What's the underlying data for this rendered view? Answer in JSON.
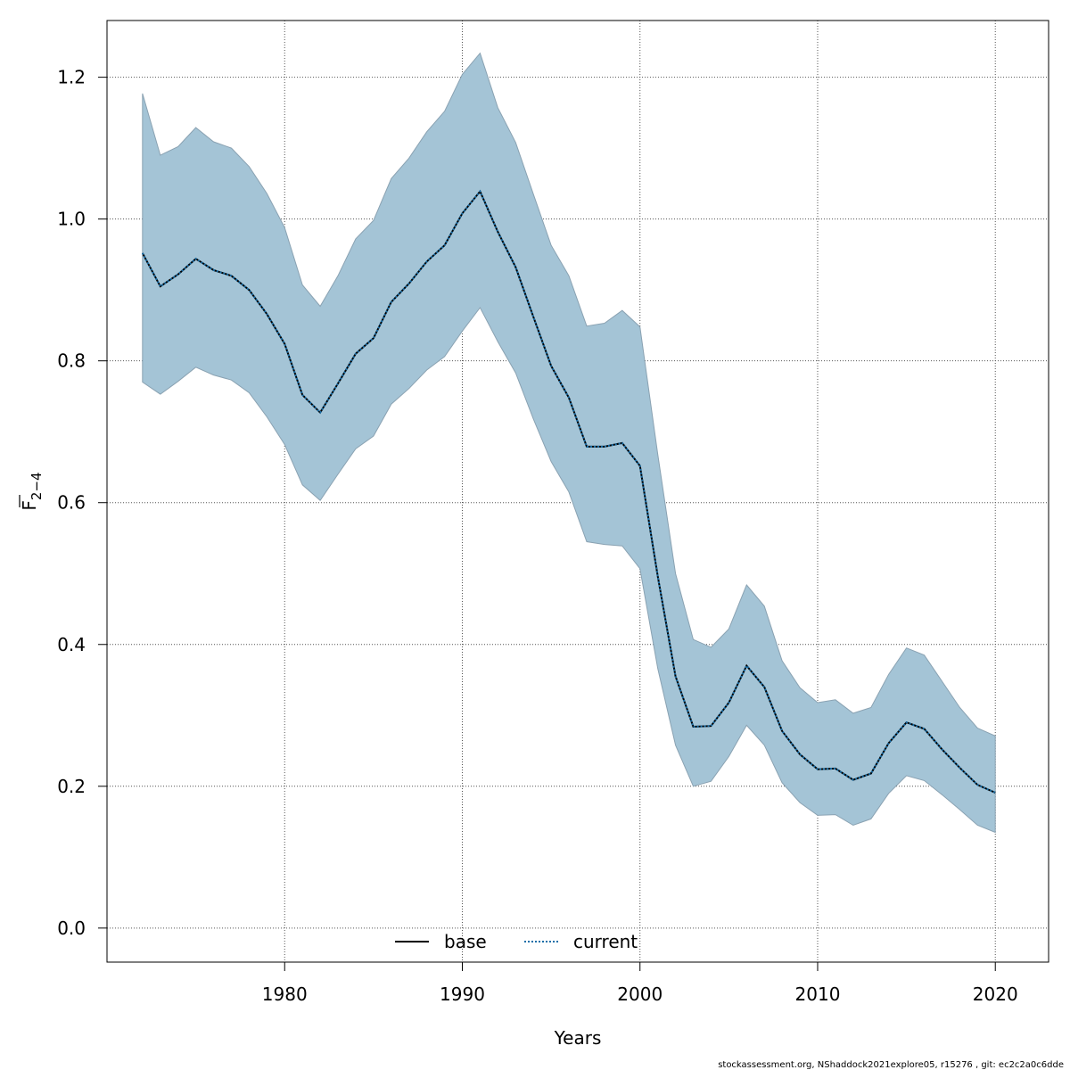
{
  "chart_data": {
    "type": "line",
    "xlabel": "Years",
    "ylabel": "F",
    "ylabel_sub": "2−4",
    "xlim": [
      1970.0,
      2023.0
    ],
    "ylim": [
      -0.048,
      1.28
    ],
    "xticks": [
      1980,
      1990,
      2000,
      2010,
      2020
    ],
    "yticks": [
      0.0,
      0.2,
      0.4,
      0.6,
      0.8,
      1.0,
      1.2
    ],
    "grid": true,
    "legend_position": "bottom-center",
    "x": [
      1972,
      1973,
      1974,
      1975,
      1976,
      1977,
      1978,
      1979,
      1980,
      1981,
      1982,
      1983,
      1984,
      1985,
      1986,
      1987,
      1988,
      1989,
      1990,
      1991,
      1992,
      1993,
      1994,
      1995,
      1996,
      1997,
      1998,
      1999,
      2000,
      2001,
      2002,
      2003,
      2004,
      2005,
      2006,
      2007,
      2008,
      2009,
      2010,
      2011,
      2012,
      2013,
      2014,
      2015,
      2016,
      2017,
      2018,
      2019,
      2020
    ],
    "series": [
      {
        "name": "base",
        "style": "solid",
        "color": "#000000",
        "values": [
          0.952,
          0.905,
          0.922,
          0.944,
          0.928,
          0.92,
          0.9,
          0.866,
          0.824,
          0.752,
          0.727,
          0.768,
          0.81,
          0.832,
          0.883,
          0.909,
          0.94,
          0.963,
          1.008,
          1.039,
          0.982,
          0.932,
          0.862,
          0.793,
          0.748,
          0.679,
          0.679,
          0.684,
          0.652,
          0.496,
          0.355,
          0.284,
          0.285,
          0.318,
          0.37,
          0.34,
          0.278,
          0.245,
          0.224,
          0.225,
          0.209,
          0.218,
          0.261,
          0.29,
          0.281,
          0.252,
          0.226,
          0.202,
          0.191
        ]
      },
      {
        "name": "current",
        "style": "dotted",
        "color": "#1a6fa8",
        "values": [
          0.952,
          0.905,
          0.922,
          0.944,
          0.928,
          0.92,
          0.9,
          0.866,
          0.824,
          0.752,
          0.727,
          0.768,
          0.81,
          0.832,
          0.883,
          0.909,
          0.94,
          0.963,
          1.008,
          1.039,
          0.982,
          0.932,
          0.862,
          0.793,
          0.748,
          0.679,
          0.679,
          0.684,
          0.652,
          0.496,
          0.355,
          0.284,
          0.285,
          0.318,
          0.37,
          0.34,
          0.278,
          0.245,
          0.224,
          0.225,
          0.209,
          0.218,
          0.261,
          0.29,
          0.281,
          0.252,
          0.226,
          0.202,
          0.191
        ]
      }
    ],
    "band": {
      "color": "#a4c4d6",
      "edge_color": "#8aa2b2",
      "lower": [
        0.77,
        0.753,
        0.771,
        0.791,
        0.78,
        0.773,
        0.755,
        0.721,
        0.682,
        0.625,
        0.603,
        0.64,
        0.676,
        0.694,
        0.739,
        0.761,
        0.787,
        0.806,
        0.842,
        0.875,
        0.827,
        0.783,
        0.718,
        0.658,
        0.615,
        0.545,
        0.541,
        0.539,
        0.507,
        0.366,
        0.258,
        0.2,
        0.207,
        0.242,
        0.286,
        0.258,
        0.205,
        0.177,
        0.159,
        0.16,
        0.145,
        0.154,
        0.19,
        0.215,
        0.208,
        0.188,
        0.167,
        0.145,
        0.135
      ],
      "upper": [
        1.177,
        1.09,
        1.102,
        1.129,
        1.109,
        1.1,
        1.074,
        1.036,
        0.988,
        0.907,
        0.877,
        0.92,
        0.972,
        0.998,
        1.057,
        1.086,
        1.123,
        1.152,
        1.204,
        1.234,
        1.157,
        1.108,
        1.035,
        0.963,
        0.92,
        0.849,
        0.853,
        0.871,
        0.848,
        0.668,
        0.5,
        0.407,
        0.396,
        0.422,
        0.484,
        0.454,
        0.377,
        0.339,
        0.318,
        0.322,
        0.303,
        0.311,
        0.358,
        0.395,
        0.385,
        0.348,
        0.311,
        0.282,
        0.271
      ]
    }
  },
  "legend": {
    "base": "base",
    "current": "current"
  },
  "footer": "stockassessment.org, NShaddock2021explore05, r15276 , git: ec2c2a0c6dde"
}
